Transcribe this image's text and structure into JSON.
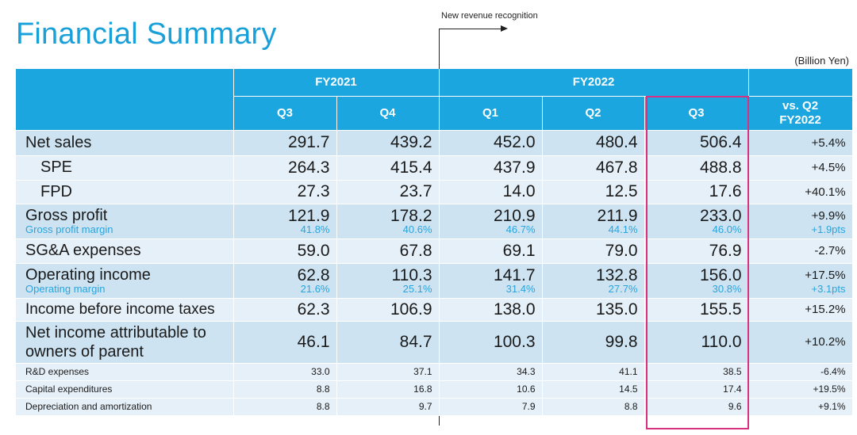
{
  "title": "Financial Summary",
  "annotation": "New revenue recognition",
  "unit": "(Billion Yen)",
  "header": {
    "fy2021": "FY2021",
    "fy2022": "FY2022",
    "quarters": [
      "Q3",
      "Q4",
      "Q1",
      "Q2",
      "Q3"
    ],
    "vs_line1": "vs. Q2",
    "vs_line2": "FY2022"
  },
  "rows": [
    {
      "label": "Net sales",
      "values": [
        "291.7",
        "439.2",
        "452.0",
        "480.4",
        "506.4"
      ],
      "change": "+5.4%"
    },
    {
      "label": "SPE",
      "values": [
        "264.3",
        "415.4",
        "437.9",
        "467.8",
        "488.8"
      ],
      "change": "+4.5%"
    },
    {
      "label": "FPD",
      "values": [
        "27.3",
        "23.7",
        "14.0",
        "12.5",
        "17.6"
      ],
      "change": "+40.1%"
    },
    {
      "label": "Gross profit",
      "sublabel": "Gross profit margin",
      "values": [
        "121.9",
        "178.2",
        "210.9",
        "211.9",
        "233.0"
      ],
      "subvalues": [
        "41.8%",
        "40.6%",
        "46.7%",
        "44.1%",
        "46.0%"
      ],
      "change": "+9.9%",
      "subchange": "+1.9pts"
    },
    {
      "label": "SG&A expenses",
      "values": [
        "59.0",
        "67.8",
        "69.1",
        "79.0",
        "76.9"
      ],
      "change": "-2.7%"
    },
    {
      "label": "Operating income",
      "sublabel": "Operating margin",
      "values": [
        "62.8",
        "110.3",
        "141.7",
        "132.8",
        "156.0"
      ],
      "subvalues": [
        "21.6%",
        "25.1%",
        "31.4%",
        "27.7%",
        "30.8%"
      ],
      "change": "+17.5%",
      "subchange": "+3.1pts"
    },
    {
      "label": "Income before income taxes",
      "values": [
        "62.3",
        "106.9",
        "138.0",
        "135.0",
        "155.5"
      ],
      "change": "+15.2%"
    },
    {
      "label_line1": "Net income attributable to",
      "label_line2": "owners of parent",
      "values": [
        "46.1",
        "84.7",
        "100.3",
        "99.8",
        "110.0"
      ],
      "change": "+10.2%"
    },
    {
      "label": "R&D expenses",
      "values": [
        "33.0",
        "37.1",
        "34.3",
        "41.1",
        "38.5"
      ],
      "change": "-6.4%"
    },
    {
      "label": "Capital expenditures",
      "values": [
        "8.8",
        "16.8",
        "10.6",
        "14.5",
        "17.4"
      ],
      "change": "+19.5%"
    },
    {
      "label": "Depreciation and amortization",
      "values": [
        "8.8",
        "9.7",
        "7.9",
        "8.8",
        "9.6"
      ],
      "change": "+9.1%"
    }
  ],
  "colors": {
    "title": "#1aa0d8",
    "header_bg": "#1ba6df",
    "row_dark": "#cde3f2",
    "row_light": "#e6f0f9",
    "sub_text": "#2aa4dc",
    "highlight_box": "#d7317f"
  }
}
